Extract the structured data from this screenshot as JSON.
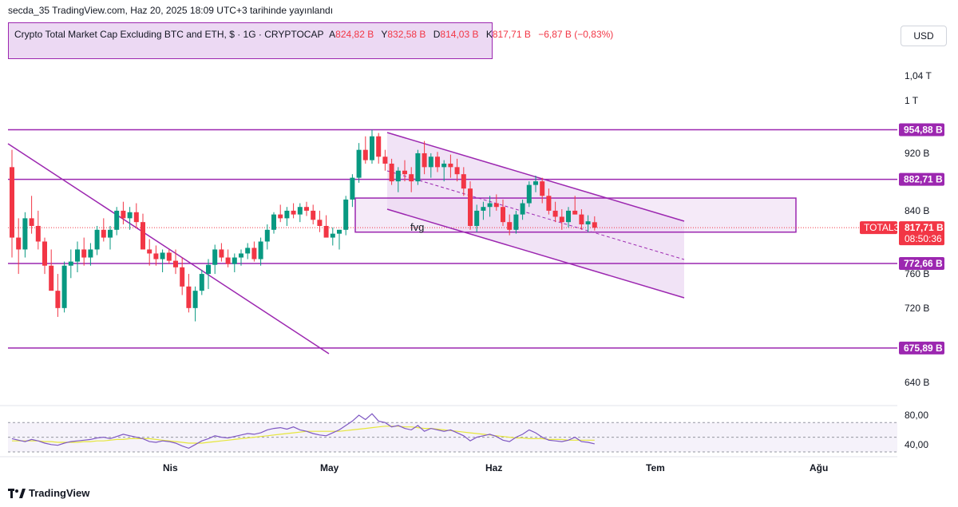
{
  "header": {
    "published": "secda_35 TradingView.com, Haz 20, 2025 18:09 UTC+3 tarihinde yayınlandı"
  },
  "legend": {
    "title": "Crypto Total Market Cap Excluding BTC and ETH, $ · 1G · CRYPTOCAP",
    "o_label": "A",
    "o_value": "824,82 B",
    "h_label": "Y",
    "h_value": "832,58 B",
    "l_label": "D",
    "l_value": "814,03 B",
    "c_label": "K",
    "c_value": "817,71 B",
    "change": "−6,87 B (−0,83%)"
  },
  "currency_button": "USD",
  "footer": {
    "brand": "TradingView"
  },
  "colors": {
    "up": "#089981",
    "down": "#f23645",
    "drawing": "#9c27b0",
    "zone_fill": "#ecd9f3",
    "rsi": "#7e57c2",
    "rsi_ma": "#e6e63b"
  },
  "chart_data": {
    "type": "candlestick",
    "y_scale": "log",
    "price_axis_ticks": [
      "1,04 T",
      "1 T",
      "920 B",
      "840 B",
      "760 B",
      "720 B",
      "640 B"
    ],
    "x_axis_ticks": [
      "Nis",
      "May",
      "Haz",
      "Tem",
      "Ağu"
    ],
    "price_labels": [
      {
        "text": "954,88 B",
        "value": 954.88
      },
      {
        "text": "882,71 B",
        "value": 882.71
      },
      {
        "text": "772,66 B",
        "value": 772.66
      },
      {
        "text": "675,89 B",
        "value": 675.89
      }
    ],
    "last_price": {
      "symbol": "TOTAL3",
      "value_text": "817,71 B",
      "value": 817.71,
      "countdown": "08:50:36"
    },
    "annotations": [
      {
        "text": "fvg"
      }
    ],
    "fvg_zone": {
      "top": 857,
      "bottom": 812
    },
    "candles_ohlc_billion": [
      [
        900,
        925,
        780,
        805
      ],
      [
        805,
        830,
        760,
        790
      ],
      [
        790,
        838,
        780,
        830
      ],
      [
        830,
        860,
        810,
        820
      ],
      [
        820,
        840,
        790,
        800
      ],
      [
        800,
        805,
        760,
        770
      ],
      [
        770,
        790,
        745,
        740
      ],
      [
        740,
        760,
        710,
        720
      ],
      [
        720,
        775,
        715,
        770
      ],
      [
        770,
        790,
        755,
        775
      ],
      [
        775,
        800,
        762,
        790
      ],
      [
        790,
        805,
        770,
        780
      ],
      [
        780,
        798,
        770,
        790
      ],
      [
        790,
        820,
        783,
        815
      ],
      [
        815,
        830,
        800,
        805
      ],
      [
        805,
        820,
        790,
        815
      ],
      [
        815,
        845,
        808,
        840
      ],
      [
        840,
        852,
        822,
        830
      ],
      [
        830,
        845,
        815,
        838
      ],
      [
        838,
        850,
        817,
        825
      ],
      [
        825,
        836,
        800,
        790
      ],
      [
        790,
        803,
        770,
        785
      ],
      [
        785,
        795,
        770,
        778
      ],
      [
        778,
        790,
        762,
        786
      ],
      [
        786,
        790,
        772,
        776
      ],
      [
        776,
        790,
        760,
        768
      ],
      [
        768,
        780,
        735,
        745
      ],
      [
        745,
        760,
        715,
        720
      ],
      [
        720,
        745,
        705,
        740
      ],
      [
        740,
        765,
        735,
        760
      ],
      [
        760,
        778,
        742,
        771
      ],
      [
        771,
        796,
        760,
        790
      ],
      [
        790,
        798,
        775,
        780
      ],
      [
        780,
        790,
        768,
        772
      ],
      [
        772,
        785,
        762,
        780
      ],
      [
        780,
        790,
        770,
        785
      ],
      [
        785,
        798,
        778,
        792
      ],
      [
        792,
        800,
        775,
        778
      ],
      [
        778,
        805,
        770,
        800
      ],
      [
        800,
        822,
        790,
        815
      ],
      [
        815,
        838,
        810,
        835
      ],
      [
        835,
        848,
        825,
        830
      ],
      [
        830,
        845,
        820,
        840
      ],
      [
        840,
        850,
        830,
        835
      ],
      [
        835,
        850,
        825,
        845
      ],
      [
        845,
        852,
        833,
        840
      ],
      [
        840,
        848,
        822,
        828
      ],
      [
        828,
        840,
        812,
        820
      ],
      [
        820,
        834,
        808,
        805
      ],
      [
        805,
        818,
        795,
        810
      ],
      [
        810,
        815,
        790,
        815
      ],
      [
        815,
        860,
        808,
        855
      ],
      [
        855,
        890,
        845,
        885
      ],
      [
        885,
        935,
        878,
        925
      ],
      [
        925,
        945,
        905,
        910
      ],
      [
        910,
        955,
        905,
        945
      ],
      [
        945,
        950,
        905,
        915
      ],
      [
        915,
        925,
        895,
        905
      ],
      [
        905,
        912,
        875,
        880
      ],
      [
        880,
        900,
        865,
        895
      ],
      [
        895,
        910,
        880,
        890
      ],
      [
        890,
        900,
        865,
        880
      ],
      [
        880,
        925,
        875,
        920
      ],
      [
        920,
        938,
        890,
        900
      ],
      [
        900,
        920,
        885,
        915
      ],
      [
        915,
        922,
        893,
        900
      ],
      [
        900,
        910,
        880,
        905
      ],
      [
        905,
        918,
        885,
        900
      ],
      [
        900,
        912,
        880,
        890
      ],
      [
        890,
        900,
        860,
        870
      ],
      [
        870,
        880,
        815,
        820
      ],
      [
        820,
        848,
        812,
        840
      ],
      [
        840,
        852,
        828,
        845
      ],
      [
        845,
        860,
        832,
        850
      ],
      [
        850,
        862,
        840,
        845
      ],
      [
        845,
        855,
        820,
        825
      ],
      [
        825,
        835,
        808,
        815
      ],
      [
        815,
        840,
        810,
        835
      ],
      [
        835,
        855,
        828,
        850
      ],
      [
        850,
        880,
        845,
        875
      ],
      [
        875,
        888,
        865,
        880
      ],
      [
        880,
        885,
        850,
        860
      ],
      [
        860,
        870,
        835,
        840
      ],
      [
        840,
        852,
        825,
        832
      ],
      [
        832,
        842,
        815,
        825
      ],
      [
        825,
        845,
        818,
        840
      ],
      [
        840,
        860,
        835,
        835
      ],
      [
        835,
        842,
        815,
        822
      ],
      [
        822,
        834,
        812,
        826
      ],
      [
        824.82,
        832.58,
        814.03,
        817.71
      ]
    ],
    "rsi_panel": {
      "ticks": [
        "80,00",
        "40,00"
      ],
      "rsi": [
        48,
        46,
        44,
        47,
        45,
        42,
        40,
        39,
        42,
        44,
        45,
        46,
        47,
        49,
        50,
        48,
        51,
        54,
        52,
        50,
        48,
        44,
        43,
        45,
        44,
        42,
        38,
        35,
        40,
        45,
        48,
        52,
        50,
        49,
        51,
        53,
        55,
        54,
        56,
        60,
        62,
        63,
        61,
        64,
        60,
        58,
        55,
        53,
        52,
        56,
        60,
        66,
        72,
        80,
        74,
        82,
        72,
        70,
        64,
        66,
        62,
        60,
        66,
        58,
        62,
        60,
        58,
        60,
        56,
        52,
        45,
        50,
        52,
        54,
        51,
        46,
        44,
        50,
        54,
        60,
        56,
        50,
        46,
        45,
        44,
        46,
        50,
        44,
        43,
        41
      ],
      "rsi_ma": [
        45,
        45,
        45,
        45,
        45,
        44,
        44,
        43,
        43,
        43,
        43,
        44,
        44,
        45,
        45,
        46,
        47,
        47,
        48,
        48,
        48,
        48,
        47,
        46,
        45,
        44,
        43,
        42,
        42,
        42,
        43,
        44,
        45,
        46,
        47,
        48,
        49,
        50,
        51,
        52,
        53,
        54,
        55,
        56,
        57,
        58,
        58,
        58,
        58,
        58,
        58,
        59,
        60,
        61,
        62,
        63,
        64,
        65,
        65,
        65,
        64,
        64,
        63,
        62,
        62,
        61,
        60,
        59,
        58,
        57,
        56,
        55,
        54,
        53,
        52,
        51,
        50,
        49,
        49,
        48,
        48,
        48,
        47,
        47,
        47,
        46,
        46,
        46,
        46,
        46
      ]
    }
  }
}
